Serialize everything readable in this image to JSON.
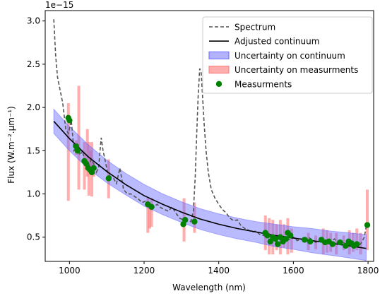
{
  "chart_data": {
    "type": "line",
    "title": "",
    "xlabel": "Wavelength (nm)",
    "ylabel": "Flux (W.m⁻².µm⁻¹)",
    "offset_label": "1e−15",
    "xlim": [
      935,
      1815
    ],
    "ylim": [
      0.22,
      3.12
    ],
    "x_ticks": [
      1000,
      1200,
      1400,
      1600,
      1800
    ],
    "y_ticks": [
      0.5,
      1.0,
      1.5,
      2.0,
      2.5,
      3.0
    ],
    "x_tick_labels": [
      "1000",
      "1200",
      "1400",
      "1600",
      "1800"
    ],
    "y_tick_labels": [
      "0.5",
      "1.0",
      "1.5",
      "2.0",
      "2.5",
      "3.0"
    ],
    "grid": false,
    "legend_position": "top-right",
    "colors": {
      "spectrum": "#555555",
      "continuum": "#000000",
      "continuum_band": "#6666ff",
      "measurement_band": "#ff7777",
      "measurements": "#008000"
    },
    "legend": [
      {
        "label": "Spectrum",
        "kind": "dashed-line"
      },
      {
        "label": "Adjusted continuum",
        "kind": "line"
      },
      {
        "label": "Uncertainty on continuum",
        "kind": "blue-band"
      },
      {
        "label": "Uncertainty on measurments",
        "kind": "red-band"
      },
      {
        "label": "Measurments",
        "kind": "marker"
      }
    ],
    "series": [
      {
        "name": "Spectrum",
        "x": [
          958,
          963,
          968,
          975,
          982,
          990,
          997,
          1005,
          1012,
          1020,
          1028,
          1035,
          1042,
          1050,
          1058,
          1065,
          1072,
          1078,
          1085,
          1090,
          1095,
          1102,
          1110,
          1118,
          1126,
          1135,
          1145,
          1155,
          1165,
          1175,
          1185,
          1195,
          1205,
          1215,
          1225,
          1235,
          1245,
          1255,
          1265,
          1275,
          1285,
          1295,
          1305,
          1315,
          1325,
          1332,
          1337,
          1341,
          1345,
          1349,
          1353,
          1357,
          1361,
          1366,
          1372,
          1380,
          1390,
          1400,
          1410,
          1420,
          1430,
          1440,
          1450,
          1460,
          1470,
          1480,
          1490,
          1500,
          1510,
          1520,
          1530,
          1540,
          1550,
          1560,
          1570,
          1580,
          1590,
          1600,
          1610,
          1620,
          1630,
          1640,
          1650,
          1660,
          1670,
          1680,
          1690,
          1700,
          1710,
          1720,
          1730,
          1740,
          1750,
          1760,
          1770,
          1780,
          1790,
          1795
        ],
        "y": [
          3.02,
          2.6,
          2.35,
          2.2,
          2.05,
          1.75,
          1.7,
          1.85,
          1.5,
          1.55,
          1.45,
          1.5,
          1.35,
          1.3,
          1.4,
          1.35,
          1.25,
          1.3,
          1.65,
          1.5,
          1.4,
          1.25,
          1.2,
          1.18,
          1.12,
          1.3,
          1.05,
          1.0,
          1.0,
          0.97,
          0.94,
          0.9,
          0.92,
          0.86,
          0.85,
          0.88,
          0.84,
          0.82,
          0.8,
          0.85,
          0.78,
          0.72,
          0.7,
          0.69,
          0.68,
          0.8,
          1.2,
          1.7,
          2.15,
          2.45,
          2.4,
          2.1,
          1.8,
          1.5,
          1.25,
          1.05,
          0.95,
          0.88,
          0.82,
          0.78,
          0.72,
          0.69,
          0.7,
          0.63,
          0.6,
          0.58,
          0.56,
          0.57,
          0.53,
          0.52,
          0.5,
          0.52,
          0.48,
          0.5,
          0.49,
          0.51,
          0.47,
          0.5,
          0.46,
          0.48,
          0.45,
          0.5,
          0.47,
          0.44,
          0.46,
          0.47,
          0.43,
          0.45,
          0.48,
          0.42,
          0.44,
          0.43,
          0.41,
          0.45,
          0.4,
          0.42,
          0.5,
          0.62
        ]
      },
      {
        "name": "Adjusted continuum",
        "x": [
          958,
          1000,
          1050,
          1100,
          1150,
          1200,
          1250,
          1300,
          1350,
          1400,
          1450,
          1500,
          1550,
          1600,
          1650,
          1700,
          1750,
          1795
        ],
        "y": [
          1.84,
          1.64,
          1.43,
          1.26,
          1.11,
          0.98,
          0.88,
          0.79,
          0.71,
          0.65,
          0.6,
          0.56,
          0.52,
          0.49,
          0.46,
          0.43,
          0.4,
          0.37
        ]
      },
      {
        "name": "Uncertainty on continuum",
        "x": [
          958,
          1000,
          1050,
          1100,
          1150,
          1200,
          1250,
          1300,
          1350,
          1400,
          1450,
          1500,
          1550,
          1600,
          1650,
          1700,
          1750,
          1795
        ],
        "upper": [
          1.98,
          1.78,
          1.57,
          1.39,
          1.24,
          1.11,
          1.0,
          0.91,
          0.83,
          0.77,
          0.72,
          0.68,
          0.65,
          0.62,
          0.6,
          0.57,
          0.55,
          0.53
        ],
        "lower": [
          1.7,
          1.5,
          1.29,
          1.13,
          0.99,
          0.86,
          0.76,
          0.67,
          0.59,
          0.53,
          0.48,
          0.44,
          0.39,
          0.36,
          0.32,
          0.29,
          0.26,
          0.23
        ]
      },
      {
        "name": "Uncertainty on measurments",
        "bars": [
          {
            "x": 997,
            "low": 0.92,
            "high": 2.05
          },
          {
            "x": 1018,
            "low": 1.45,
            "high": 1.62
          },
          {
            "x": 1025,
            "low": 1.05,
            "high": 2.25
          },
          {
            "x": 1040,
            "low": 1.05,
            "high": 1.6
          },
          {
            "x": 1048,
            "low": 1.2,
            "high": 1.75
          },
          {
            "x": 1052,
            "low": 0.98,
            "high": 1.6
          },
          {
            "x": 1057,
            "low": 1.25,
            "high": 1.5
          },
          {
            "x": 1060,
            "low": 0.97,
            "high": 1.6
          },
          {
            "x": 1065,
            "low": 1.2,
            "high": 1.35
          },
          {
            "x": 1105,
            "low": 0.95,
            "high": 1.4
          },
          {
            "x": 1210,
            "low": 0.55,
            "high": 0.95
          },
          {
            "x": 1215,
            "low": 0.6,
            "high": 0.9
          },
          {
            "x": 1220,
            "low": 0.62,
            "high": 0.95
          },
          {
            "x": 1307,
            "low": 0.45,
            "high": 0.95
          },
          {
            "x": 1335,
            "low": 0.55,
            "high": 0.9
          },
          {
            "x": 1525,
            "low": 0.35,
            "high": 0.75
          },
          {
            "x": 1535,
            "low": 0.3,
            "high": 0.72
          },
          {
            "x": 1545,
            "low": 0.3,
            "high": 0.7
          },
          {
            "x": 1555,
            "low": 0.35,
            "high": 0.65
          },
          {
            "x": 1565,
            "low": 0.3,
            "high": 0.7
          },
          {
            "x": 1575,
            "low": 0.38,
            "high": 0.65
          },
          {
            "x": 1585,
            "low": 0.3,
            "high": 0.72
          },
          {
            "x": 1595,
            "low": 0.32,
            "high": 0.6
          },
          {
            "x": 1640,
            "low": 0.35,
            "high": 0.55
          },
          {
            "x": 1660,
            "low": 0.36,
            "high": 0.52
          },
          {
            "x": 1680,
            "low": 0.3,
            "high": 0.6
          },
          {
            "x": 1690,
            "low": 0.32,
            "high": 0.58
          },
          {
            "x": 1700,
            "low": 0.33,
            "high": 0.55
          },
          {
            "x": 1715,
            "low": 0.3,
            "high": 0.55
          },
          {
            "x": 1735,
            "low": 0.35,
            "high": 0.52
          },
          {
            "x": 1750,
            "low": 0.3,
            "high": 0.58
          },
          {
            "x": 1760,
            "low": 0.33,
            "high": 0.55
          },
          {
            "x": 1770,
            "low": 0.35,
            "high": 0.6
          },
          {
            "x": 1780,
            "low": 0.3,
            "high": 0.55
          },
          {
            "x": 1798,
            "low": 0.35,
            "high": 1.05
          }
        ]
      },
      {
        "name": "Measurments",
        "x": [
          997,
          1000,
          1018,
          1022,
          1040,
          1045,
          1050,
          1055,
          1060,
          1065,
          1105,
          1210,
          1220,
          1305,
          1310,
          1335,
          1525,
          1530,
          1538,
          1545,
          1552,
          1558,
          1565,
          1572,
          1580,
          1585,
          1592,
          1630,
          1645,
          1675,
          1685,
          1695,
          1705,
          1725,
          1740,
          1748,
          1755,
          1762,
          1770,
          1798
        ],
        "y": [
          1.88,
          1.85,
          1.55,
          1.5,
          1.38,
          1.35,
          1.3,
          1.28,
          1.25,
          1.3,
          1.18,
          0.88,
          0.85,
          0.65,
          0.7,
          0.68,
          0.55,
          0.52,
          0.45,
          0.5,
          0.48,
          0.42,
          0.5,
          0.45,
          0.48,
          0.55,
          0.52,
          0.47,
          0.45,
          0.47,
          0.44,
          0.45,
          0.42,
          0.44,
          0.4,
          0.45,
          0.43,
          0.4,
          0.42,
          0.64
        ]
      }
    ]
  }
}
